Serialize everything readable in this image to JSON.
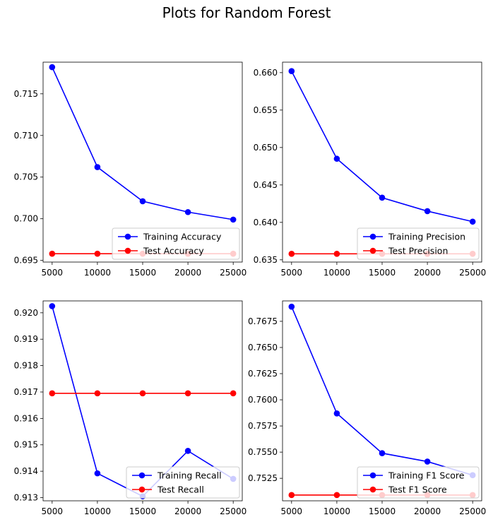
{
  "figure": {
    "title": "Plots for Random Forest",
    "colors": {
      "training": "#0000ff",
      "test": "#ff0000"
    }
  },
  "chart_data": [
    {
      "type": "line",
      "x": [
        5000,
        10000,
        15000,
        20000,
        25000
      ],
      "xticks": [
        5000,
        10000,
        15000,
        20000,
        25000
      ],
      "xlim": [
        4000,
        26000
      ],
      "ylim": [
        0.6948,
        0.7188
      ],
      "yticks": [
        "0.695",
        "0.700",
        "0.705",
        "0.710",
        "0.715"
      ],
      "legend_position": "lower-right",
      "series": [
        {
          "name": "Training Accuracy",
          "color": "#0000ff",
          "values": [
            0.7182,
            0.7062,
            0.7021,
            0.7008,
            0.6999
          ]
        },
        {
          "name": "Test Accuracy",
          "color": "#ff0000",
          "values": [
            0.6958,
            0.6958,
            0.6958,
            0.6958,
            0.6958
          ]
        }
      ]
    },
    {
      "type": "line",
      "x": [
        5000,
        10000,
        15000,
        20000,
        25000
      ],
      "xticks": [
        5000,
        10000,
        15000,
        20000,
        25000
      ],
      "xlim": [
        4000,
        26000
      ],
      "ylim": [
        0.6347,
        0.6614
      ],
      "yticks": [
        "0.635",
        "0.640",
        "0.645",
        "0.650",
        "0.655",
        "0.660"
      ],
      "legend_position": "lower-right",
      "series": [
        {
          "name": "Training Precision",
          "color": "#0000ff",
          "values": [
            0.6602,
            0.6485,
            0.6433,
            0.6415,
            0.6401
          ]
        },
        {
          "name": "Test Precision",
          "color": "#ff0000",
          "values": [
            0.6358,
            0.6358,
            0.6358,
            0.6358,
            0.6358
          ]
        }
      ]
    },
    {
      "type": "line",
      "x": [
        5000,
        10000,
        15000,
        20000,
        25000
      ],
      "xticks": [
        5000,
        10000,
        15000,
        20000,
        25000
      ],
      "xlim": [
        4000,
        26000
      ],
      "ylim": [
        0.91288,
        0.92045
      ],
      "yticks": [
        "0.913",
        "0.914",
        "0.915",
        "0.916",
        "0.917",
        "0.918",
        "0.919",
        "0.920"
      ],
      "legend_position": "lower-right",
      "series": [
        {
          "name": "Training Recall",
          "color": "#0000ff",
          "values": [
            0.92025,
            0.91392,
            0.91305,
            0.91477,
            0.91371
          ]
        },
        {
          "name": "Test Recall",
          "color": "#ff0000",
          "values": [
            0.91695,
            0.91695,
            0.91695,
            0.91695,
            0.91695
          ]
        }
      ]
    },
    {
      "type": "line",
      "x": [
        5000,
        10000,
        15000,
        20000,
        25000
      ],
      "xticks": [
        5000,
        10000,
        15000,
        20000,
        25000
      ],
      "xlim": [
        4000,
        26000
      ],
      "ylim": [
        0.75035,
        0.76945
      ],
      "yticks": [
        "0.7525",
        "0.7550",
        "0.7575",
        "0.7600",
        "0.7625",
        "0.7650",
        "0.7675"
      ],
      "legend_position": "lower-right",
      "series": [
        {
          "name": "Training F1 Score",
          "color": "#0000ff",
          "values": [
            0.7689,
            0.7587,
            0.7549,
            0.7541,
            0.7528
          ]
        },
        {
          "name": "Test F1 Score",
          "color": "#ff0000",
          "values": [
            0.7509,
            0.7509,
            0.7509,
            0.7509,
            0.7509
          ]
        }
      ]
    }
  ]
}
